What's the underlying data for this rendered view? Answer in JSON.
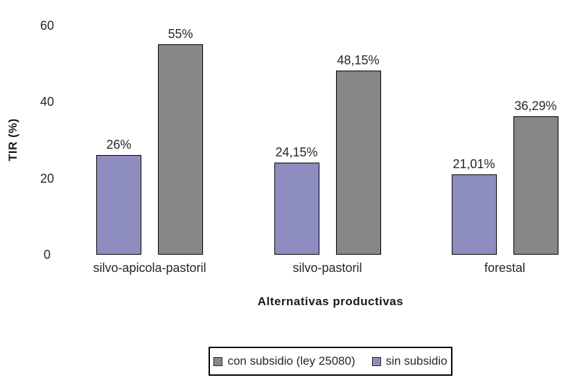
{
  "chart_data": {
    "type": "bar",
    "title": "",
    "categories": [
      "silvo-apicola-pastoril",
      "silvo-pastoril",
      "forestal"
    ],
    "series": [
      {
        "name": "sin subsidio",
        "values": [
          26,
          24.15,
          21.01
        ],
        "value_labels": [
          "26%",
          "24,15%",
          "21,01%"
        ],
        "color": "#8d8dbf"
      },
      {
        "name": "con subsidio (ley 25080)",
        "values": [
          55,
          48.15,
          36.29
        ],
        "value_labels": [
          "55%",
          "48,15%",
          "36,29%"
        ],
        "color": "#878787"
      }
    ],
    "xlabel": "Alternativas productivas",
    "ylabel": "TIR (%)",
    "ylim": [
      0,
      60
    ],
    "yticks": [
      0,
      20,
      40,
      60
    ],
    "grid": false,
    "legend_position": "bottom",
    "bar_border_color": "#000000"
  },
  "legend": {
    "items": [
      {
        "label": "con subsidio (ley 25080)",
        "color": "#878787"
      },
      {
        "label": "sin subsidio",
        "color": "#8d8dbf"
      }
    ]
  }
}
